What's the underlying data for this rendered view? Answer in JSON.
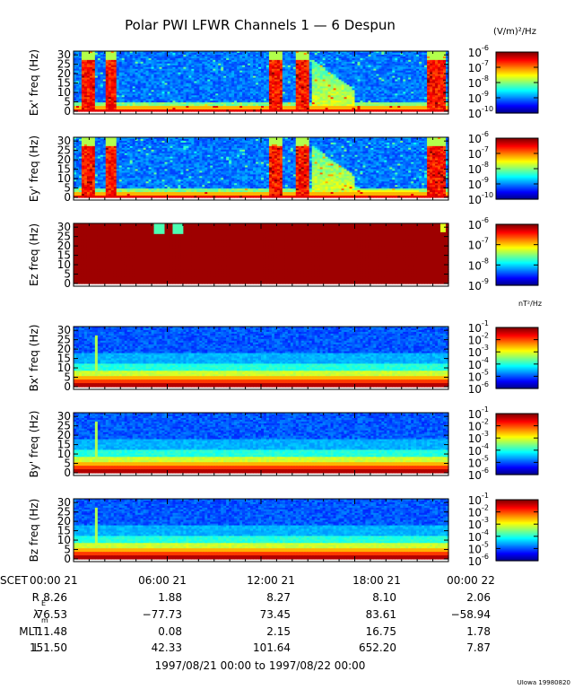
{
  "figure": {
    "title": "Polar PWI LFWR Channels 1 — 6 Despun",
    "date_range": "1997/08/21 00:00 to 1997/08/22 00:00",
    "credit": "UIowa 19980820",
    "electric_units": "(V/m)²/Hz",
    "magnetic_units": "nT²/Hz"
  },
  "chart_data": [
    {
      "type": "heatmap",
      "ylabel": "Ex' freq (Hz)",
      "ylim": [
        0,
        32
      ],
      "yticks": [
        0,
        5,
        10,
        15,
        20,
        25,
        30
      ],
      "colorbar_exponents": [
        "-6",
        "-7",
        "-8",
        "-9",
        "-10"
      ],
      "colorbar_range": [
        -10,
        -6
      ],
      "time_range_hours": [
        0,
        24
      ]
    },
    {
      "type": "heatmap",
      "ylabel": "Ey' freq (Hz)",
      "ylim": [
        0,
        32
      ],
      "yticks": [
        0,
        5,
        10,
        15,
        20,
        25,
        30
      ],
      "colorbar_exponents": [
        "-6",
        "-7",
        "-8",
        "-9",
        "-10"
      ],
      "colorbar_range": [
        -10,
        -6
      ],
      "time_range_hours": [
        0,
        24
      ]
    },
    {
      "type": "heatmap",
      "ylabel": "Ez freq (Hz)",
      "ylim": [
        0,
        32
      ],
      "yticks": [
        0,
        5,
        10,
        15,
        20,
        25,
        30
      ],
      "colorbar_exponents": [
        "-6",
        "-7",
        "-8",
        "-9"
      ],
      "colorbar_range": [
        -9,
        -6
      ],
      "time_range_hours": [
        0,
        24
      ]
    },
    {
      "type": "heatmap",
      "ylabel": "Bx' freq (Hz)",
      "ylim": [
        0,
        32
      ],
      "yticks": [
        0,
        5,
        10,
        15,
        20,
        25,
        30
      ],
      "colorbar_exponents": [
        "-1",
        "-2",
        "-3",
        "-4",
        "-5",
        "-6"
      ],
      "colorbar_range": [
        -6,
        -1
      ],
      "time_range_hours": [
        0,
        24
      ]
    },
    {
      "type": "heatmap",
      "ylabel": "By' freq (Hz)",
      "ylim": [
        0,
        32
      ],
      "yticks": [
        0,
        5,
        10,
        15,
        20,
        25,
        30
      ],
      "colorbar_exponents": [
        "-1",
        "-2",
        "-3",
        "-4",
        "-5",
        "-6"
      ],
      "colorbar_range": [
        -6,
        -1
      ],
      "time_range_hours": [
        0,
        24
      ]
    },
    {
      "type": "heatmap",
      "ylabel": "Bz freq (Hz)",
      "ylim": [
        0,
        32
      ],
      "yticks": [
        0,
        5,
        10,
        15,
        20,
        25,
        30
      ],
      "colorbar_exponents": [
        "-1",
        "-2",
        "-3",
        "-4",
        "-5",
        "-6"
      ],
      "colorbar_range": [
        -6,
        -1
      ],
      "time_range_hours": [
        0,
        24
      ]
    }
  ],
  "ephemeris": {
    "header": "SCET",
    "times": [
      "00:00 21",
      "06:00 21",
      "12:00 21",
      "18:00 21",
      "00:00 22"
    ],
    "rows": [
      {
        "label": "R",
        "sub": "E",
        "values": [
          "8.26",
          "1.88",
          "8.27",
          "8.10",
          "2.06"
        ]
      },
      {
        "label": "λ",
        "sub": "m",
        "values": [
          "76.53",
          "−77.73",
          "73.45",
          "83.61",
          "−58.94"
        ]
      },
      {
        "label": "MLT",
        "sub": "",
        "values": [
          "11.48",
          "0.08",
          "2.15",
          "16.75",
          "1.78"
        ]
      },
      {
        "label": "L",
        "sub": "",
        "values": [
          "151.50",
          "42.33",
          "101.64",
          "652.20",
          "7.87"
        ]
      }
    ]
  },
  "colors": {
    "jet": [
      "#00007f",
      "#0000ff",
      "#007fff",
      "#00ffff",
      "#7fff7f",
      "#ffff00",
      "#ff7f00",
      "#ff0000",
      "#7f0000"
    ]
  }
}
